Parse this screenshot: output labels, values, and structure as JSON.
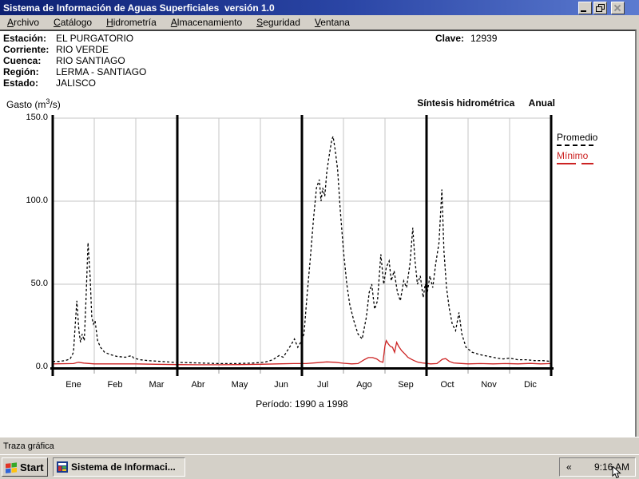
{
  "window": {
    "title": "Sistema de Información de Aguas Superficiales  versión 1.0",
    "controls": [
      "minimize-button",
      "restore-button",
      "close-button"
    ]
  },
  "menu": {
    "items": [
      "Archivo",
      "Catálogo",
      "Hidrometría",
      "Almacenamiento",
      "Seguridad",
      "Ventana"
    ]
  },
  "info": {
    "rows": [
      {
        "label": "Estación:",
        "value": "EL PURGATORIO"
      },
      {
        "label": "Corriente:",
        "value": "RIO VERDE"
      },
      {
        "label": "Cuenca:",
        "value": "RIO SANTIAGO"
      },
      {
        "label": "Región:",
        "value": "LERMA - SANTIAGO"
      },
      {
        "label": "Estado:",
        "value": "JALISCO"
      }
    ],
    "clave": {
      "label": "Clave:",
      "value": "12939"
    }
  },
  "chart": {
    "y_title_pre": "Gasto (m",
    "y_title_sup": "3",
    "y_title_suf": "/s)",
    "header_title": "Síntesis hidrométrica",
    "header_mode": "Anual",
    "period_label": "Período: 1990 a 1998"
  },
  "chart_data": {
    "type": "line",
    "title": "Síntesis hidrométrica Anual",
    "ylabel": "Gasto (m³/s)",
    "footnote": "Período: 1990 a 1998",
    "categories": [
      "Ene",
      "Feb",
      "Mar",
      "Abr",
      "May",
      "Jun",
      "Jul",
      "Ago",
      "Sep",
      "Oct",
      "Nov",
      "Dic"
    ],
    "x_units": "month index (0 = inicio de Ene, 12 = fin de Dic)",
    "y_units": "m³/s",
    "xlim": [
      0,
      12
    ],
    "ylim": [
      0,
      150
    ],
    "yticks": [
      0,
      50,
      100,
      150
    ],
    "ytick_labels": [
      "0.0",
      "50.0",
      "100.0",
      "150.0"
    ],
    "quarter_dividers": [
      0,
      3,
      6,
      9,
      12
    ],
    "grid": true,
    "legend_position": "right",
    "series": [
      {
        "name": "Promedio",
        "color": "#000000",
        "line_style": "dashed",
        "points": [
          [
            0,
            3.5
          ],
          [
            0.15,
            3.5
          ],
          [
            0.3,
            4
          ],
          [
            0.42,
            5
          ],
          [
            0.5,
            9
          ],
          [
            0.54,
            25
          ],
          [
            0.58,
            40
          ],
          [
            0.63,
            22
          ],
          [
            0.67,
            15
          ],
          [
            0.71,
            20
          ],
          [
            0.76,
            16
          ],
          [
            0.8,
            40
          ],
          [
            0.85,
            75
          ],
          [
            0.9,
            55
          ],
          [
            0.94,
            30
          ],
          [
            0.98,
            26
          ],
          [
            1.02,
            28
          ],
          [
            1.08,
            16
          ],
          [
            1.15,
            12
          ],
          [
            1.25,
            9
          ],
          [
            1.4,
            7.5
          ],
          [
            1.55,
            6.5
          ],
          [
            1.75,
            6
          ],
          [
            1.9,
            7
          ],
          [
            1.95,
            5.5
          ],
          [
            2.1,
            4.5
          ],
          [
            2.3,
            4
          ],
          [
            2.6,
            3.5
          ],
          [
            2.9,
            3
          ],
          [
            3.2,
            2.8
          ],
          [
            3.6,
            2.5
          ],
          [
            4,
            2.2
          ],
          [
            4.4,
            2.2
          ],
          [
            4.8,
            2.5
          ],
          [
            5.1,
            3
          ],
          [
            5.3,
            4.5
          ],
          [
            5.45,
            7
          ],
          [
            5.55,
            6
          ],
          [
            5.65,
            10
          ],
          [
            5.75,
            14
          ],
          [
            5.82,
            17
          ],
          [
            5.9,
            12
          ],
          [
            5.97,
            15
          ],
          [
            6.05,
            20
          ],
          [
            6.12,
            42
          ],
          [
            6.2,
            65
          ],
          [
            6.28,
            90
          ],
          [
            6.35,
            108
          ],
          [
            6.42,
            113
          ],
          [
            6.46,
            100
          ],
          [
            6.5,
            108
          ],
          [
            6.55,
            103
          ],
          [
            6.6,
            118
          ],
          [
            6.66,
            128
          ],
          [
            6.72,
            137
          ],
          [
            6.75,
            139
          ],
          [
            6.8,
            131
          ],
          [
            6.86,
            119
          ],
          [
            6.92,
            96
          ],
          [
            7,
            70
          ],
          [
            7.08,
            50
          ],
          [
            7.15,
            38
          ],
          [
            7.25,
            28
          ],
          [
            7.35,
            20
          ],
          [
            7.45,
            17
          ],
          [
            7.55,
            30
          ],
          [
            7.62,
            45
          ],
          [
            7.68,
            50
          ],
          [
            7.75,
            35
          ],
          [
            7.82,
            40
          ],
          [
            7.9,
            68
          ],
          [
            7.97,
            50
          ],
          [
            8.03,
            60
          ],
          [
            8.1,
            64
          ],
          [
            8.15,
            52
          ],
          [
            8.22,
            58
          ],
          [
            8.3,
            45
          ],
          [
            8.37,
            40
          ],
          [
            8.45,
            52
          ],
          [
            8.52,
            48
          ],
          [
            8.6,
            62
          ],
          [
            8.67,
            84
          ],
          [
            8.72,
            65
          ],
          [
            8.78,
            50
          ],
          [
            8.85,
            55
          ],
          [
            8.92,
            42
          ],
          [
            8.97,
            50
          ],
          [
            9.02,
            45
          ],
          [
            9.08,
            55
          ],
          [
            9.15,
            48
          ],
          [
            9.22,
            62
          ],
          [
            9.3,
            75
          ],
          [
            9.37,
            107
          ],
          [
            9.42,
            70
          ],
          [
            9.48,
            48
          ],
          [
            9.55,
            35
          ],
          [
            9.62,
            26
          ],
          [
            9.7,
            22
          ],
          [
            9.78,
            33
          ],
          [
            9.85,
            20
          ],
          [
            9.95,
            12
          ],
          [
            10.1,
            9
          ],
          [
            10.3,
            7.5
          ],
          [
            10.5,
            6.5
          ],
          [
            10.7,
            5.5
          ],
          [
            10.85,
            5
          ],
          [
            11,
            5.5
          ],
          [
            11.2,
            4.5
          ],
          [
            11.4,
            4.5
          ],
          [
            11.6,
            4
          ],
          [
            11.8,
            4
          ],
          [
            12,
            3.5
          ]
        ]
      },
      {
        "name": "Mínimo",
        "color": "#cc2222",
        "line_style": "solid",
        "points": [
          [
            0,
            2
          ],
          [
            0.5,
            2.2
          ],
          [
            0.62,
            3
          ],
          [
            0.75,
            2.5
          ],
          [
            1,
            2
          ],
          [
            1.5,
            2
          ],
          [
            2,
            2
          ],
          [
            2.5,
            1.8
          ],
          [
            3,
            1.6
          ],
          [
            3.5,
            1.5
          ],
          [
            4,
            1.5
          ],
          [
            4.5,
            1.6
          ],
          [
            5,
            1.8
          ],
          [
            5.4,
            2
          ],
          [
            5.8,
            2.2
          ],
          [
            6.1,
            2.2
          ],
          [
            6.4,
            2.8
          ],
          [
            6.6,
            3.2
          ],
          [
            6.8,
            3
          ],
          [
            7,
            2.4
          ],
          [
            7.2,
            2
          ],
          [
            7.35,
            2.2
          ],
          [
            7.5,
            4.5
          ],
          [
            7.6,
            5.8
          ],
          [
            7.7,
            5.8
          ],
          [
            7.8,
            5
          ],
          [
            7.88,
            3.5
          ],
          [
            7.95,
            3
          ],
          [
            8,
            13
          ],
          [
            8.03,
            16
          ],
          [
            8.08,
            14
          ],
          [
            8.13,
            12.5
          ],
          [
            8.18,
            12
          ],
          [
            8.23,
            9
          ],
          [
            8.28,
            15
          ],
          [
            8.33,
            12.5
          ],
          [
            8.4,
            10
          ],
          [
            8.48,
            8
          ],
          [
            8.55,
            6
          ],
          [
            8.62,
            5
          ],
          [
            8.7,
            4
          ],
          [
            8.8,
            3
          ],
          [
            8.9,
            2.6
          ],
          [
            9,
            2.3
          ],
          [
            9.1,
            2
          ],
          [
            9.25,
            2.2
          ],
          [
            9.38,
            4.8
          ],
          [
            9.46,
            5.2
          ],
          [
            9.55,
            3.5
          ],
          [
            9.65,
            2.6
          ],
          [
            9.8,
            2.3
          ],
          [
            10,
            2
          ],
          [
            10.3,
            2.2
          ],
          [
            10.6,
            2
          ],
          [
            10.9,
            2.2
          ],
          [
            11.2,
            2
          ],
          [
            11.5,
            2.3
          ],
          [
            11.75,
            2
          ],
          [
            12,
            2.2
          ]
        ]
      }
    ]
  },
  "status_bar": {
    "text": "Traza gráfica"
  },
  "taskbar": {
    "start_label": "Start",
    "task_label": "Sistema de Informaci...",
    "tray_chevron": "«",
    "clock": "9:16 AM"
  }
}
